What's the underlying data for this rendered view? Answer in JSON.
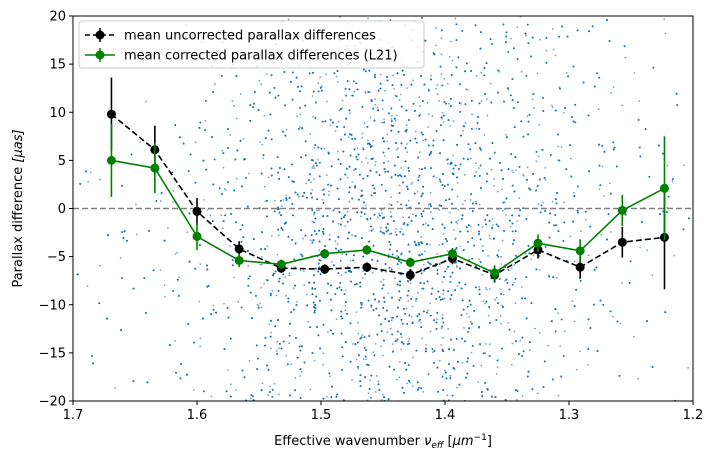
{
  "chart_data": {
    "type": "line",
    "title": "",
    "xlabel_main": "Effective wavenumber ",
    "xlabel_symbol": "ν",
    "xlabel_sub": "eff",
    "xlabel_unit_open": " [",
    "xlabel_unit": "μm",
    "xlabel_exp": "−1",
    "xlabel_unit_close": "]",
    "ylabel_main": "Parallax difference ",
    "ylabel_unit": "[μas]",
    "xlim": [
      1.7,
      1.2
    ],
    "ylim": [
      -20,
      20
    ],
    "xticks": [
      1.7,
      1.6,
      1.5,
      1.4,
      1.3,
      1.2
    ],
    "xtick_labels": [
      "1.7",
      "1.6",
      "1.5",
      "1.4",
      "1.3",
      "1.2"
    ],
    "yticks": [
      -20,
      -15,
      -10,
      -5,
      0,
      5,
      10,
      15,
      20
    ],
    "ytick_labels": [
      "−20",
      "−15",
      "−10",
      "−5",
      "0",
      "5",
      "10",
      "15",
      "20"
    ],
    "reference_line": {
      "y": 0,
      "color": "#808080",
      "style": "dashed"
    },
    "scatter": {
      "color": "#1f77b4",
      "description": "individual source parallax differences",
      "approx_count": 9000
    },
    "legend_position": "upper-left",
    "series": [
      {
        "name": "mean uncorrected parallax differences",
        "color": "#000000",
        "linestyle": "dashed",
        "x": [
          1.669,
          1.634,
          1.6,
          1.566,
          1.532,
          1.497,
          1.463,
          1.428,
          1.394,
          1.36,
          1.325,
          1.291,
          1.257,
          1.223
        ],
        "y": [
          9.8,
          6.1,
          -0.3,
          -4.2,
          -6.2,
          -6.3,
          -6.1,
          -6.9,
          -5.2,
          -6.9,
          -4.3,
          -6.1,
          -3.5,
          -3.0
        ],
        "yerr": [
          3.8,
          2.5,
          1.4,
          0.8,
          0.5,
          0.5,
          0.5,
          0.6,
          0.6,
          0.8,
          0.9,
          1.2,
          1.6,
          5.4
        ]
      },
      {
        "name": "mean corrected parallax differences (L21)",
        "color": "#008000",
        "linestyle": "solid",
        "x": [
          1.669,
          1.634,
          1.6,
          1.566,
          1.532,
          1.497,
          1.463,
          1.428,
          1.394,
          1.36,
          1.325,
          1.291,
          1.257,
          1.223
        ],
        "y": [
          5.0,
          4.2,
          -2.9,
          -5.4,
          -5.8,
          -4.7,
          -4.3,
          -5.6,
          -4.7,
          -6.7,
          -3.6,
          -4.4,
          -0.2,
          2.1
        ],
        "yerr": [
          3.8,
          2.6,
          1.4,
          0.7,
          0.5,
          0.5,
          0.5,
          0.5,
          0.6,
          0.8,
          0.9,
          1.2,
          1.6,
          5.4
        ]
      }
    ]
  }
}
